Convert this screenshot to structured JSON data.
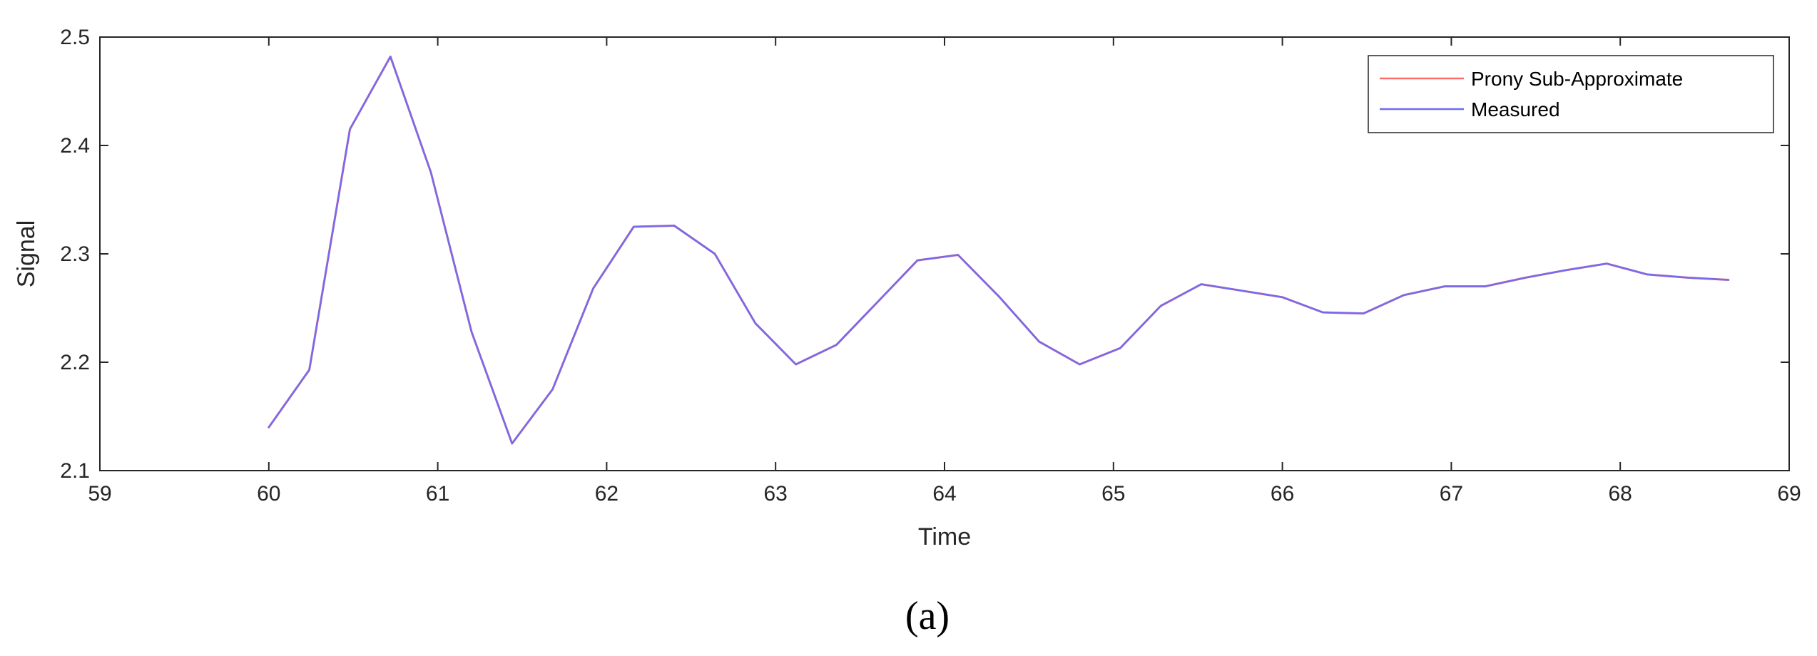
{
  "chart_data": {
    "type": "line",
    "title": "",
    "xlabel": "Time",
    "ylabel": "Signal",
    "xlim": [
      59,
      69
    ],
    "ylim": [
      2.1,
      2.5
    ],
    "xticks": [
      "59",
      "60",
      "61",
      "62",
      "63",
      "64",
      "65",
      "66",
      "67",
      "68",
      "69"
    ],
    "yticks": [
      "2.1",
      "2.2",
      "2.3",
      "2.4",
      "2.5"
    ],
    "grid": false,
    "legend_position": "top-right",
    "series": [
      {
        "name": "Prony Sub-Approximate",
        "color": "#ff6b6b",
        "x": [
          60.0,
          60.24,
          60.48,
          60.72,
          60.96,
          61.2,
          61.44,
          61.68,
          61.92,
          62.16,
          62.4,
          62.64,
          62.88,
          63.12,
          63.36,
          63.6,
          63.84,
          64.08,
          64.32,
          64.56,
          64.8,
          65.04,
          65.28,
          65.52,
          65.76,
          66.0,
          66.24,
          66.48,
          66.72,
          66.96,
          67.2,
          67.44,
          67.68,
          67.92,
          68.16,
          68.4,
          68.64
        ],
        "y": [
          2.14,
          2.193,
          2.415,
          2.482,
          2.375,
          2.228,
          2.125,
          2.175,
          2.268,
          2.325,
          2.326,
          2.3,
          2.236,
          2.198,
          2.216,
          2.255,
          2.294,
          2.299,
          2.261,
          2.219,
          2.198,
          2.213,
          2.252,
          2.272,
          2.266,
          2.26,
          2.246,
          2.245,
          2.262,
          2.27,
          2.27,
          2.278,
          2.285,
          2.291,
          2.281,
          2.278,
          2.276
        ]
      },
      {
        "name": "Measured",
        "color": "#6f6cf5",
        "x": [
          60.0,
          60.24,
          60.48,
          60.72,
          60.96,
          61.2,
          61.44,
          61.68,
          61.92,
          62.16,
          62.4,
          62.64,
          62.88,
          63.12,
          63.36,
          63.6,
          63.84,
          64.08,
          64.32,
          64.56,
          64.8,
          65.04,
          65.28,
          65.52,
          65.76,
          66.0,
          66.24,
          66.48,
          66.72,
          66.96,
          67.2,
          67.44,
          67.68,
          67.92,
          68.16,
          68.4,
          68.64
        ],
        "y": [
          2.14,
          2.193,
          2.415,
          2.482,
          2.375,
          2.228,
          2.125,
          2.175,
          2.268,
          2.325,
          2.326,
          2.3,
          2.236,
          2.198,
          2.216,
          2.255,
          2.294,
          2.299,
          2.261,
          2.219,
          2.198,
          2.213,
          2.252,
          2.272,
          2.266,
          2.26,
          2.246,
          2.245,
          2.262,
          2.27,
          2.27,
          2.278,
          2.285,
          2.291,
          2.281,
          2.278,
          2.276
        ]
      }
    ]
  },
  "caption": "(a)"
}
